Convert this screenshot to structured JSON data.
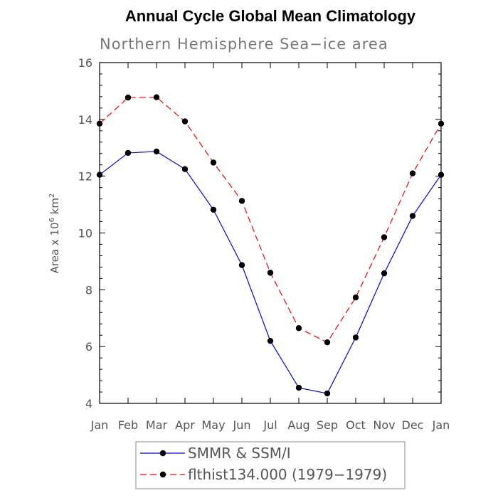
{
  "chart_data": {
    "type": "line",
    "title": "Annual Cycle Global Mean Climatology",
    "subtitle": "Northern Hemisphere Sea−ice area",
    "ylabel": {
      "prefix": "Area x 10",
      "exponent": "6",
      "unit": " km",
      "unit_exponent": "2"
    },
    "xlabel": "",
    "categories": [
      "Jan",
      "Feb",
      "Mar",
      "Apr",
      "May",
      "Jun",
      "Jul",
      "Aug",
      "Sep",
      "Oct",
      "Nov",
      "Dec",
      "Jan"
    ],
    "ylim": [
      4,
      16
    ],
    "yticks": [
      4,
      6,
      8,
      10,
      12,
      14,
      16
    ],
    "legend_position": "bottom-center",
    "series": [
      {
        "name": "SMMR & SSM/I",
        "color": "#0000ff",
        "dash": "solid",
        "values": [
          12.05,
          12.82,
          12.87,
          12.25,
          10.82,
          8.87,
          6.2,
          4.55,
          4.35,
          6.32,
          8.58,
          10.6,
          12.05
        ]
      },
      {
        "name": "flthist134.000 (1979−1979)",
        "color": "#ff0000",
        "dash": "dashed",
        "values": [
          13.85,
          14.77,
          14.78,
          13.93,
          12.48,
          11.13,
          8.6,
          6.65,
          6.15,
          7.73,
          9.85,
          12.1,
          13.85
        ]
      }
    ]
  }
}
